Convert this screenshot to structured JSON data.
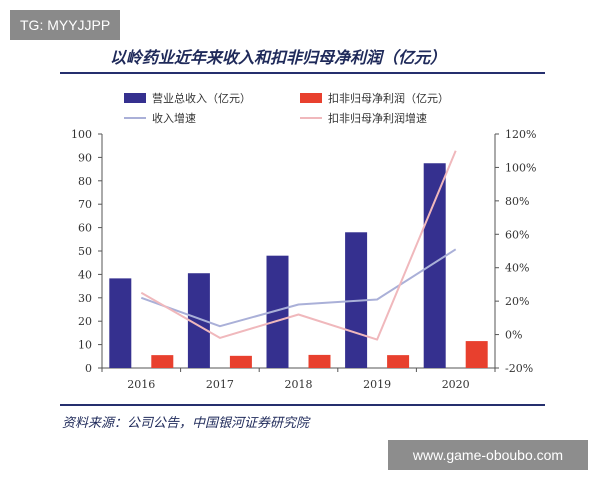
{
  "badges": {
    "tg": "TG: MYYJJPP",
    "watermark": "www.game-oboubo.com"
  },
  "source": "资料来源：公司公告，中国银河证券研究院",
  "colors": {
    "revenue_bar": "#35308f",
    "profit_bar": "#e8402e",
    "revenue_growth_line": "#aab0d8",
    "profit_growth_line": "#f0b8bc"
  },
  "chart_data": {
    "type": "bar",
    "title": "以岭药业近年来收入和扣非归母净利润（亿元）",
    "categories": [
      "2016",
      "2017",
      "2018",
      "2019",
      "2020"
    ],
    "series": [
      {
        "name": "营业总收入（亿元）",
        "kind": "bar",
        "axis": "left",
        "values": [
          38.3,
          40.5,
          48.0,
          58.0,
          87.5
        ]
      },
      {
        "name": "扣非归母净利润（亿元）",
        "kind": "bar",
        "axis": "left",
        "values": [
          5.5,
          5.2,
          5.6,
          5.5,
          11.5
        ]
      },
      {
        "name": "收入增速",
        "kind": "line",
        "axis": "right",
        "values": [
          22,
          5,
          18,
          21,
          51
        ]
      },
      {
        "name": "扣非归母净利润增速",
        "kind": "line",
        "axis": "right",
        "values": [
          25,
          -2,
          12,
          -3,
          110
        ]
      }
    ],
    "left_axis": {
      "ylim": [
        0,
        100
      ],
      "ticks": [
        "0",
        "10",
        "20",
        "30",
        "40",
        "50",
        "60",
        "70",
        "80",
        "90",
        "100"
      ]
    },
    "right_axis": {
      "ylim": [
        -20,
        120
      ],
      "ticks": [
        "-20%",
        "0%",
        "20%",
        "40%",
        "60%",
        "80%",
        "100%",
        "120%"
      ]
    },
    "grid": false,
    "legend_position": "top"
  }
}
